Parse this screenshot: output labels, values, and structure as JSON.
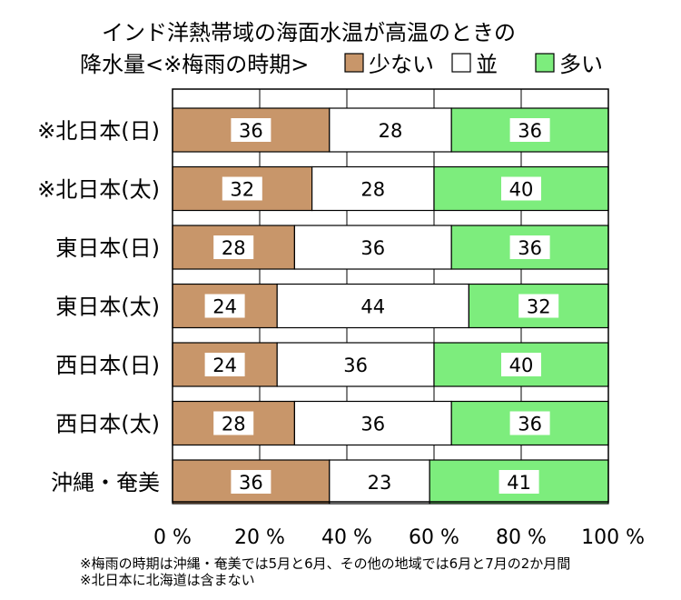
{
  "chart_data": {
    "type": "bar",
    "orientation": "horizontal",
    "stacked": true,
    "title_lines": [
      "インド洋熱帯域の海面水温が高温のときの",
      "降水量<※梅雨の時期>"
    ],
    "categories": [
      "※北日本(日)",
      "※北日本(太)",
      "東日本(日)",
      "東日本(太)",
      "西日本(日)",
      "西日本(太)",
      "沖縄・奄美"
    ],
    "series": [
      {
        "name": "少ない",
        "color": "#c8966a",
        "values": [
          36,
          32,
          28,
          24,
          24,
          28,
          36
        ]
      },
      {
        "name": "並",
        "color": "#ffffff",
        "values": [
          28,
          28,
          36,
          44,
          36,
          36,
          23
        ]
      },
      {
        "name": "多い",
        "color": "#7ded7d",
        "values": [
          36,
          40,
          36,
          32,
          40,
          36,
          41
        ]
      }
    ],
    "xlim": [
      0,
      100
    ],
    "x_ticks": [
      0,
      20,
      40,
      60,
      80,
      100
    ],
    "x_tick_labels": [
      "0 %",
      "20 %",
      "40 %",
      "60 %",
      "80 %",
      "100 %"
    ],
    "grid": true,
    "legend_position": "top-right",
    "notes": [
      "※梅雨の時期は沖縄・奄美では5月と6月、その他の地域では6月と7月の2か月間",
      "※北日本に北海道は含まない"
    ]
  }
}
